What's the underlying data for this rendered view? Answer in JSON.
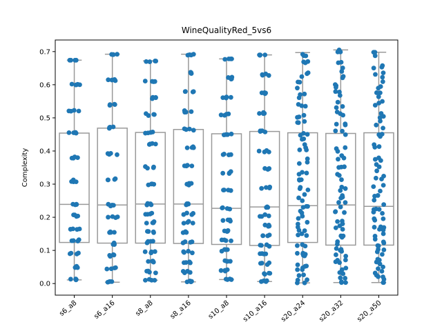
{
  "chart_data": {
    "type": "box",
    "title": "WineQualityRed_5vs6",
    "xlabel": "",
    "ylabel": "Complexity",
    "ylim": [
      -0.035,
      0.735
    ],
    "yticks": [
      0.0,
      0.1,
      0.2,
      0.3,
      0.4,
      0.5,
      0.6,
      0.7
    ],
    "ytick_labels": [
      "0.0",
      "0.1",
      "0.2",
      "0.3",
      "0.4",
      "0.5",
      "0.6",
      "0.7"
    ],
    "categories": [
      "s6_a8",
      "s6_a16",
      "s8_a8",
      "s8_a16",
      "s10_a8",
      "s10_a16",
      "s20_a24",
      "s20_a32",
      "s20_a50"
    ],
    "boxes": [
      {
        "min": 0.011,
        "q1": 0.124,
        "median": 0.239,
        "q3": 0.454,
        "max": 0.674,
        "levels": [
          0.011,
          0.05,
          0.09,
          0.13,
          0.165,
          0.205,
          0.24,
          0.31,
          0.38,
          0.455,
          0.52,
          0.6,
          0.674
        ]
      },
      {
        "min": 0.004,
        "q1": 0.122,
        "median": 0.237,
        "q3": 0.469,
        "max": 0.692,
        "levels": [
          0.004,
          0.045,
          0.085,
          0.12,
          0.155,
          0.2,
          0.237,
          0.315,
          0.39,
          0.47,
          0.54,
          0.615,
          0.692
        ]
      },
      {
        "min": 0.01,
        "q1": 0.122,
        "median": 0.24,
        "q3": 0.456,
        "max": 0.672,
        "levels": [
          0.01,
          0.035,
          0.065,
          0.095,
          0.125,
          0.155,
          0.185,
          0.21,
          0.24,
          0.3,
          0.35,
          0.42,
          0.456,
          0.51,
          0.56,
          0.61,
          0.672
        ]
      },
      {
        "min": 0.005,
        "q1": 0.121,
        "median": 0.24,
        "q3": 0.465,
        "max": 0.692,
        "levels": [
          0.005,
          0.035,
          0.065,
          0.095,
          0.125,
          0.155,
          0.185,
          0.21,
          0.24,
          0.3,
          0.355,
          0.41,
          0.465,
          0.52,
          0.58,
          0.635,
          0.692
        ]
      },
      {
        "min": 0.012,
        "q1": 0.118,
        "median": 0.227,
        "q3": 0.452,
        "max": 0.678,
        "levels": [
          0.012,
          0.04,
          0.07,
          0.1,
          0.13,
          0.16,
          0.19,
          0.227,
          0.28,
          0.335,
          0.39,
          0.45,
          0.51,
          0.56,
          0.62,
          0.678
        ]
      },
      {
        "min": 0.006,
        "q1": 0.115,
        "median": 0.231,
        "q3": 0.459,
        "max": 0.69,
        "levels": [
          0.006,
          0.03,
          0.06,
          0.09,
          0.115,
          0.145,
          0.175,
          0.205,
          0.231,
          0.29,
          0.345,
          0.4,
          0.459,
          0.515,
          0.575,
          0.63,
          0.69
        ]
      },
      {
        "min": 0.002,
        "q1": 0.124,
        "median": 0.235,
        "q3": 0.455,
        "max": 0.697,
        "levels": [
          0.002,
          0.02,
          0.04,
          0.06,
          0.08,
          0.1,
          0.124,
          0.145,
          0.165,
          0.19,
          0.21,
          0.235,
          0.26,
          0.285,
          0.31,
          0.34,
          0.37,
          0.4,
          0.43,
          0.455,
          0.48,
          0.51,
          0.54,
          0.57,
          0.6,
          0.63,
          0.66,
          0.697
        ]
      },
      {
        "min": 0.003,
        "q1": 0.116,
        "median": 0.237,
        "q3": 0.453,
        "max": 0.705,
        "levels": [
          0.003,
          0.02,
          0.04,
          0.06,
          0.08,
          0.1,
          0.116,
          0.14,
          0.165,
          0.19,
          0.215,
          0.237,
          0.26,
          0.29,
          0.32,
          0.35,
          0.38,
          0.41,
          0.453,
          0.48,
          0.51,
          0.54,
          0.57,
          0.6,
          0.63,
          0.66,
          0.705
        ]
      },
      {
        "min": 0.003,
        "q1": 0.116,
        "median": 0.233,
        "q3": 0.455,
        "max": 0.698,
        "levels": [
          0.003,
          0.02,
          0.04,
          0.06,
          0.08,
          0.1,
          0.116,
          0.135,
          0.155,
          0.175,
          0.195,
          0.215,
          0.233,
          0.26,
          0.29,
          0.32,
          0.35,
          0.38,
          0.41,
          0.455,
          0.48,
          0.51,
          0.54,
          0.57,
          0.6,
          0.63,
          0.66,
          0.698
        ]
      }
    ],
    "colors": {
      "points": "#1f77b4",
      "box_edge": "#999999",
      "axis": "#000000",
      "background": "#ffffff"
    },
    "grid": false,
    "legend": "none"
  }
}
